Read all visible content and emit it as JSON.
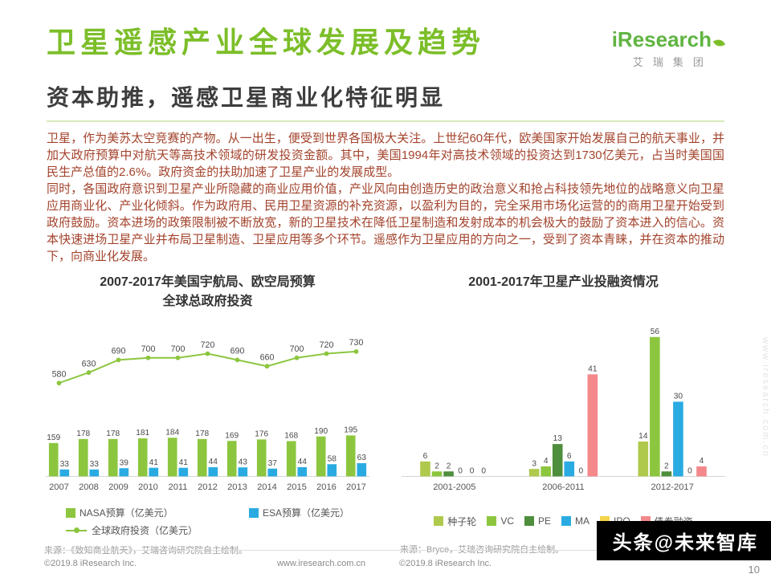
{
  "header": {
    "title": "卫星遥感产业全球发展及趋势",
    "subtitle": "资本助推，遥感卫星商业化特征明显",
    "logo": {
      "brand": "iResearch",
      "sub": "艾瑞集团"
    }
  },
  "body": {
    "p1": "卫星，作为美苏太空竞赛的产物。从一出生，便受到世界各国极大关注。上世纪60年代，欧美国家开始发展自己的航天事业，并加大政府预算中对航天等高技术领域的研发投资金额。其中，美国1994年对高技术领域的投资达到1730亿美元，占当时美国国民生产总值的2.6%。政府资金的扶助加速了卫星产业的发展成型。",
    "p2": "同时，各国政府意识到卫星产业所隐藏的商业应用价值，产业风向由创造历史的政治意义和抢占科技领先地位的战略意义向卫星应用商业化、产业化倾斜。作为政府用、民用卫星资源的补充资源，以盈利为目的，完全采用市场化运营的的商用卫星开始受到政府鼓励。资本进场的政策限制被不断放宽，新的卫星技术在降低卫星制造和发射成本的机会极大的鼓励了资本进入的信心。资本快速进场卫星产业并布局卫星制造、卫星应用等多个环节。遥感作为卫星应用的方向之一，受到了资本青睐，并在资本的推动下，向商业化发展。"
  },
  "chart_data": [
    {
      "type": "bar+line",
      "title_line1": "2007-2017年美国宇航局、欧空局预算",
      "title_line2": "全球总政府投资",
      "categories": [
        "2007",
        "2008",
        "2009",
        "2010",
        "2011",
        "2012",
        "2013",
        "2014",
        "2015",
        "2016",
        "2017"
      ],
      "series": [
        {
          "name": "NASA预算（亿美元）",
          "type": "bar",
          "color": "#8cc63f",
          "values": [
            159,
            178,
            178,
            181,
            184,
            178,
            169,
            176,
            168,
            190,
            195
          ]
        },
        {
          "name": "ESA预算（亿美元）",
          "type": "bar",
          "color": "#29abe2",
          "values": [
            33,
            33,
            39,
            41,
            41,
            44,
            43,
            37,
            44,
            58,
            63
          ]
        },
        {
          "name": "全球政府投资（亿美元）",
          "type": "line",
          "color": "#8cc63f",
          "values": [
            580,
            630,
            690,
            700,
            700,
            720,
            690,
            660,
            700,
            720,
            730
          ]
        }
      ],
      "ylabel": "",
      "grid": false,
      "legend_position": "bottom",
      "source": "来源：《致知商业航天》，艾瑞咨询研究院自主绘制。"
    },
    {
      "type": "bar",
      "title": "2001-2017年卫星产业投融资情况",
      "categories": [
        "2001-2005",
        "2006-2011",
        "2012-2017"
      ],
      "series": [
        {
          "name": "种子轮",
          "color": "#afc94c",
          "values": [
            6,
            3,
            14
          ]
        },
        {
          "name": "VC",
          "color": "#8cc63f",
          "values": [
            2,
            4,
            56
          ]
        },
        {
          "name": "PE",
          "color": "#4e8e3c",
          "values": [
            2,
            13,
            2
          ]
        },
        {
          "name": "MA",
          "color": "#29abe2",
          "values": [
            0,
            6,
            30
          ]
        },
        {
          "name": "IPO",
          "color": "#f5d54a",
          "values": [
            0,
            0,
            0
          ]
        },
        {
          "name": "债券融资",
          "color": "#f4888b",
          "values": [
            0,
            41,
            4
          ]
        }
      ],
      "ylim": [
        0,
        60
      ],
      "grid": false,
      "legend_position": "bottom",
      "source": "来源：Bryce，艾瑞咨询研究院自主绘制。"
    }
  ],
  "footer": {
    "copyright_left": "©2019.8 iResearch Inc.",
    "url": "www.iresearch.com.cn",
    "copyright_right": "©2019.8 iResearch Inc.",
    "page_number": "10",
    "watermark": "头条@未来智库",
    "side_mark": "www.iresearch.com.cn"
  }
}
